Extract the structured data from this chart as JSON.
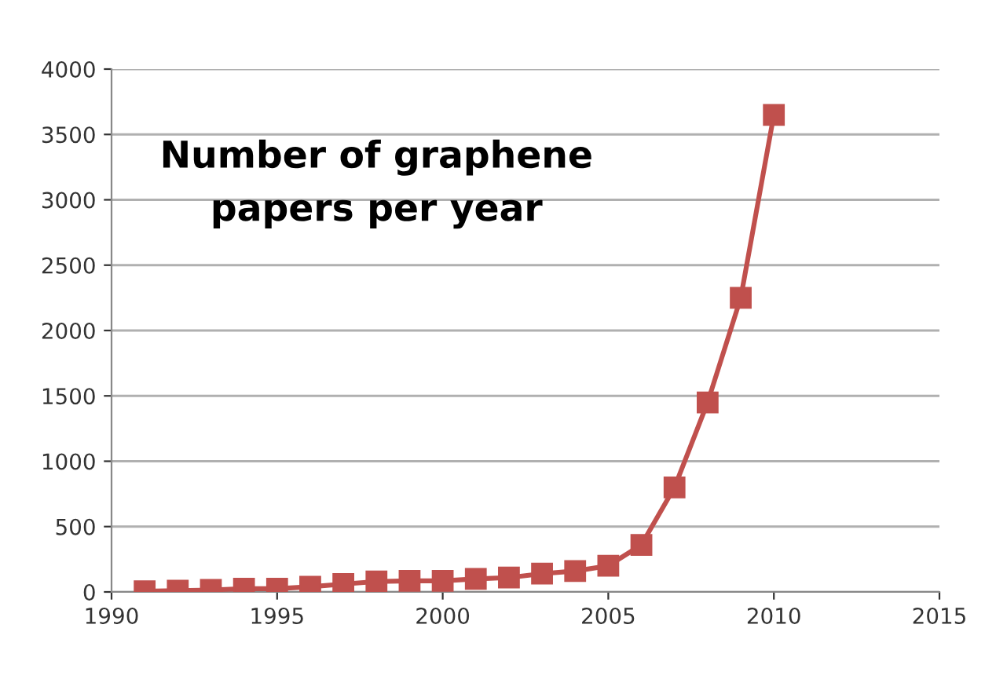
{
  "chart_data": {
    "type": "line",
    "title": "Number of graphene\npapers per year",
    "x": [
      1991,
      1992,
      1993,
      1994,
      1995,
      1996,
      1997,
      1998,
      1999,
      2000,
      2001,
      2002,
      2003,
      2004,
      2005,
      2006,
      2007,
      2008,
      2009,
      2010
    ],
    "series": [
      {
        "color": "#c0504d",
        "values": [
          5,
          10,
          15,
          25,
          25,
          40,
          60,
          80,
          85,
          85,
          100,
          110,
          140,
          160,
          200,
          360,
          800,
          1450,
          2250,
          3650
        ]
      }
    ],
    "xlim": [
      1990,
      2015
    ],
    "xticks": [
      1990,
      1995,
      2000,
      2005,
      2010,
      2015
    ],
    "ylim": [
      0,
      4000
    ],
    "yticks": [
      0,
      500,
      1000,
      1500,
      2000,
      2500,
      3000,
      3500,
      4000
    ],
    "grid": "y",
    "marker": "square",
    "line_style": "solid",
    "legend": false
  }
}
